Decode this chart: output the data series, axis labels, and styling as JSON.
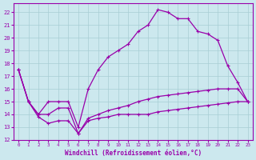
{
  "background_color": "#cce8ee",
  "grid_color": "#a8cdd4",
  "line_color": "#9900aa",
  "xlabel": "Windchill (Refroidissement éolien,°C)",
  "xlim": [
    -0.5,
    23.5
  ],
  "ylim": [
    12,
    22.7
  ],
  "yticks": [
    12,
    13,
    14,
    15,
    16,
    17,
    18,
    19,
    20,
    21,
    22
  ],
  "xticks": [
    0,
    1,
    2,
    3,
    4,
    5,
    6,
    7,
    8,
    9,
    10,
    11,
    12,
    13,
    14,
    15,
    16,
    17,
    18,
    19,
    20,
    21,
    22,
    23
  ],
  "line1_x": [
    0,
    1,
    2,
    3,
    4,
    5,
    6,
    7,
    8,
    9,
    10,
    11,
    12,
    13,
    14,
    15,
    16,
    17,
    18,
    19,
    20,
    21,
    22,
    23
  ],
  "line1_y": [
    17.5,
    15.0,
    14.0,
    14.0,
    14.5,
    14.5,
    12.5,
    13.7,
    14.0,
    14.3,
    14.5,
    14.7,
    15.0,
    15.2,
    15.4,
    15.5,
    15.6,
    15.7,
    15.8,
    15.9,
    16.0,
    16.0,
    16.0,
    15.0
  ],
  "line2_x": [
    0,
    1,
    2,
    3,
    4,
    5,
    6,
    7,
    8,
    9,
    10,
    11,
    12,
    13,
    14,
    15,
    16,
    17,
    18,
    19,
    20,
    21,
    22,
    23
  ],
  "line2_y": [
    17.5,
    15.0,
    14.0,
    15.0,
    15.0,
    15.0,
    13.0,
    16.0,
    17.5,
    18.5,
    19.0,
    19.5,
    20.5,
    21.0,
    22.2,
    22.0,
    21.5,
    21.5,
    20.5,
    20.3,
    19.8,
    17.8,
    16.5,
    15.0
  ],
  "line3_x": [
    0,
    1,
    2,
    3,
    4,
    5,
    6,
    7,
    8,
    9,
    10,
    11,
    12,
    13,
    14,
    15,
    16,
    17,
    18,
    19,
    20,
    21,
    22,
    23
  ],
  "line3_y": [
    17.5,
    15.0,
    13.8,
    13.3,
    13.5,
    13.5,
    12.5,
    13.5,
    13.7,
    13.8,
    14.0,
    14.0,
    14.0,
    14.0,
    14.2,
    14.3,
    14.4,
    14.5,
    14.6,
    14.7,
    14.8,
    14.9,
    15.0,
    15.0
  ]
}
